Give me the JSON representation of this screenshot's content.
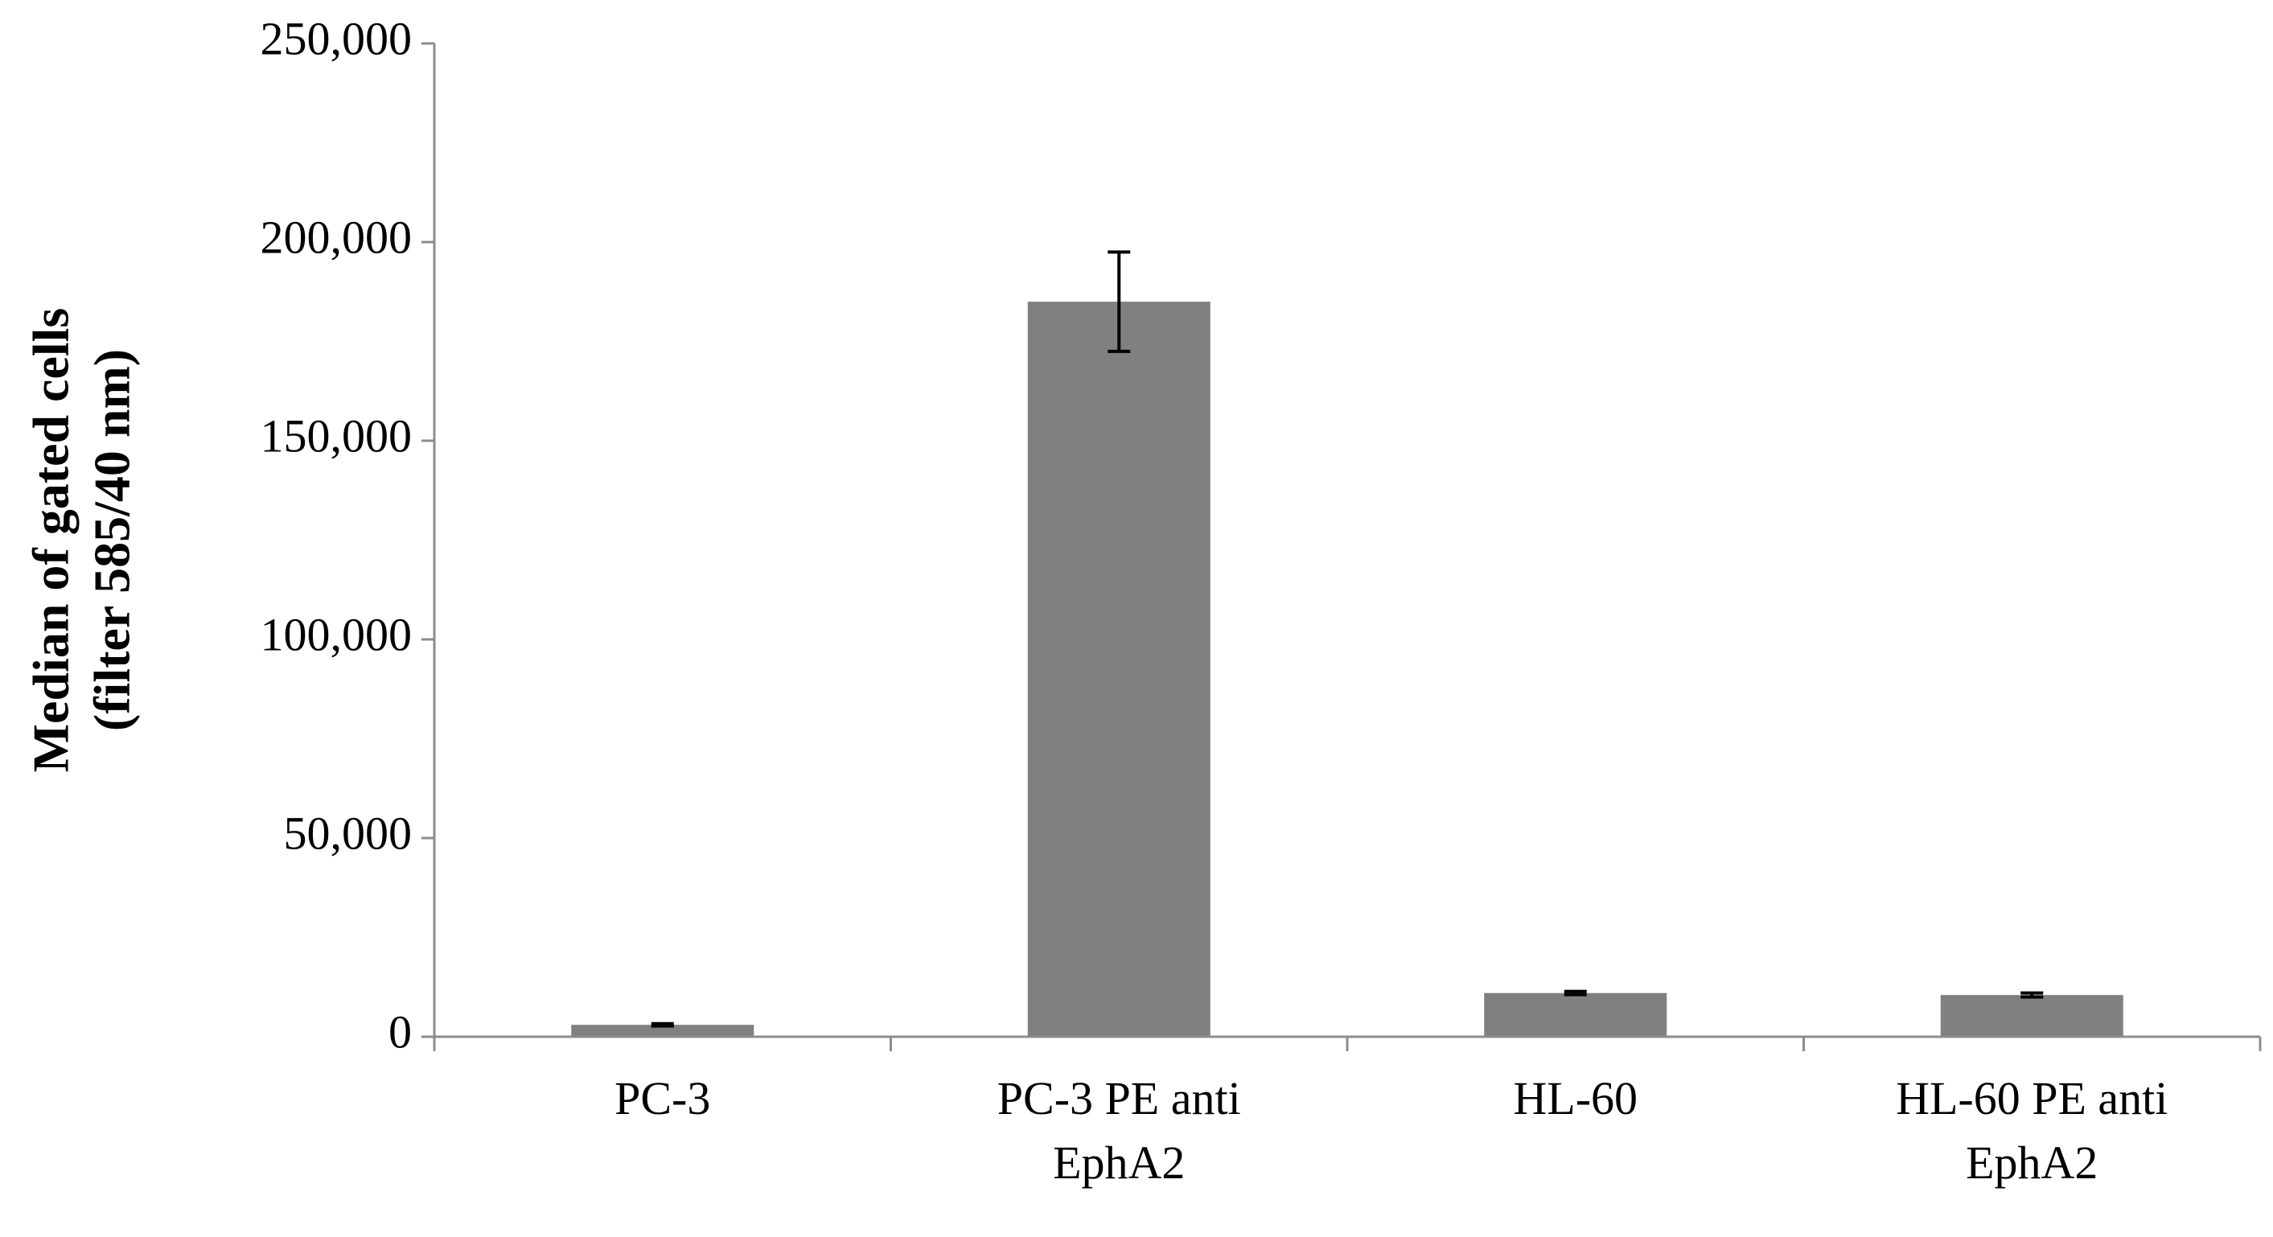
{
  "chart_data": {
    "type": "bar",
    "categories": [
      [
        "PC-3"
      ],
      [
        "PC-3 PE anti",
        "EphA2"
      ],
      [
        "HL-60"
      ],
      [
        "HL-60 PE anti",
        "EphA2"
      ]
    ],
    "values": [
      3000,
      185000,
      11000,
      10500
    ],
    "error": [
      300,
      12500,
      400,
      500
    ],
    "ylabel_lines": [
      "Median of gated cells",
      "(filter 585/40 nm)"
    ],
    "ylim": [
      0,
      250000
    ],
    "yticks": [
      0,
      50000,
      100000,
      150000,
      200000,
      250000
    ],
    "ytick_labels": [
      "0",
      "50,000",
      "100,000",
      "150,000",
      "200,000",
      "250,000"
    ],
    "grid": false,
    "legend": "none",
    "colors": {
      "bar": "#808080",
      "error_bar": "#000000",
      "axis": "#8c8c8c"
    }
  }
}
